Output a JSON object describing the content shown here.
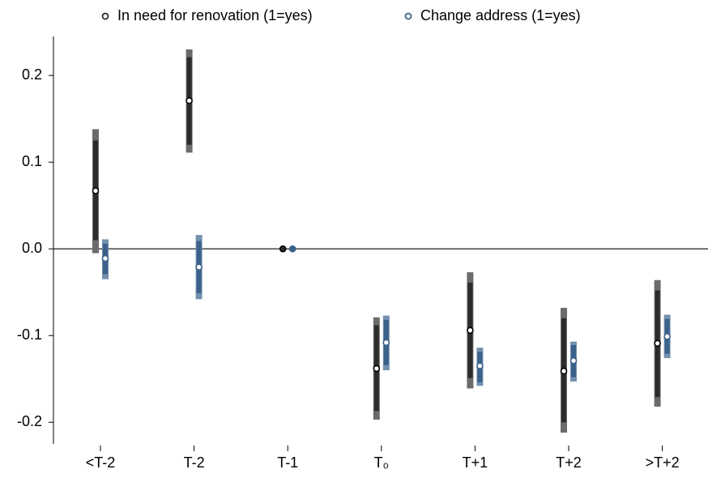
{
  "chart_data": {
    "type": "coefplot",
    "categories": [
      "<T-2",
      "T-2",
      "T-1",
      "T₀",
      "T+1",
      "T+2",
      ">T+2"
    ],
    "series": [
      {
        "name": "In need for renovation (1=yes)",
        "color": "#2b2b2b",
        "outer_color": "#6b6b6b",
        "values": [
          0.067,
          0.171,
          0,
          -0.138,
          -0.094,
          -0.141,
          -0.109
        ],
        "inner_low": [
          0.01,
          0.12,
          0,
          -0.187,
          -0.149,
          -0.2,
          -0.171
        ],
        "inner_high": [
          0.125,
          0.221,
          0,
          -0.088,
          -0.039,
          -0.08,
          -0.048
        ],
        "outer_low": [
          -0.005,
          0.111,
          0,
          -0.197,
          -0.161,
          -0.212,
          -0.182
        ],
        "outer_high": [
          0.138,
          0.23,
          0,
          -0.079,
          -0.027,
          -0.068,
          -0.036
        ]
      },
      {
        "name": "Change address (1=yes)",
        "color": "#3a6189",
        "outer_color": "#7390ae",
        "values": [
          -0.011,
          -0.021,
          0,
          -0.108,
          -0.135,
          -0.129,
          -0.101
        ],
        "inner_low": [
          -0.029,
          -0.051,
          0,
          -0.134,
          -0.154,
          -0.148,
          -0.121
        ],
        "inner_high": [
          0.006,
          0.009,
          0,
          -0.082,
          -0.119,
          -0.111,
          -0.081
        ],
        "outer_low": [
          -0.035,
          -0.058,
          0,
          -0.14,
          -0.158,
          -0.153,
          -0.126
        ],
        "outer_high": [
          0.011,
          0.016,
          0,
          -0.077,
          -0.114,
          -0.107,
          -0.076
        ]
      }
    ],
    "ylim": [
      -0.225,
      0.245
    ],
    "yticks": [
      0.2,
      0.1,
      {
        "value": 0,
        "label": "0.0"
      },
      -0.1,
      -0.2
    ],
    "zero_line": true,
    "legend": "top"
  }
}
